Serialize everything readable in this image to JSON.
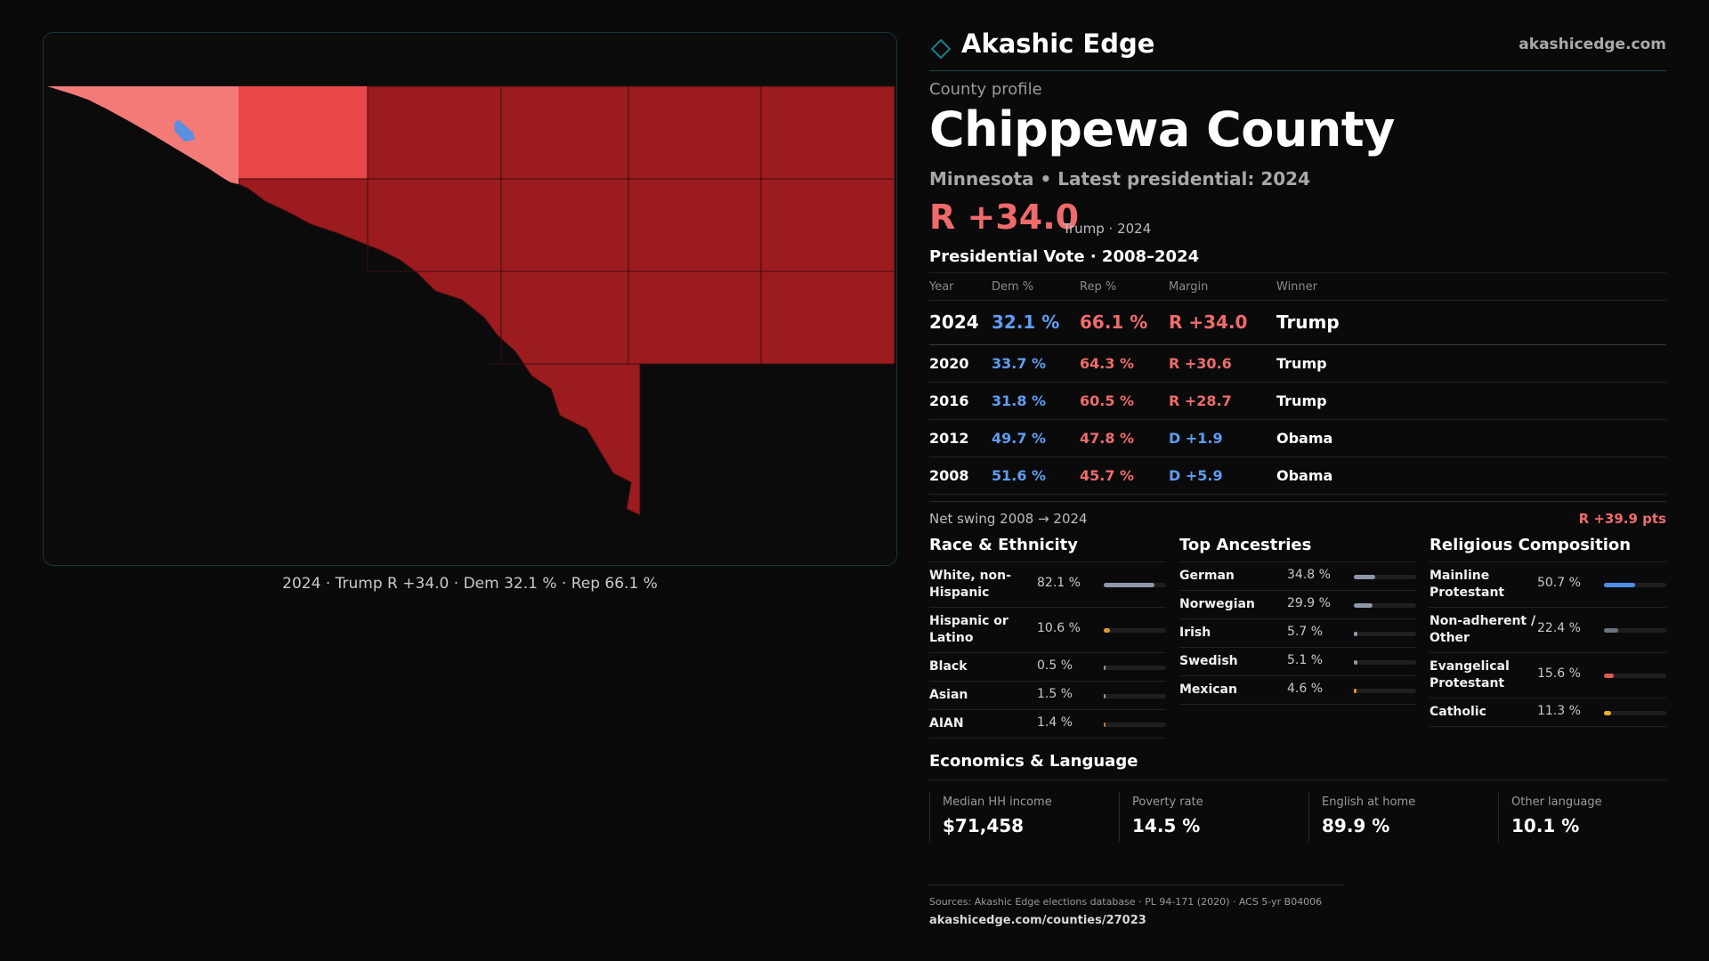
{
  "map": {
    "caption": "2024 · Trump R +34.0 · Dem 32.1 % · Rep 66.1 %",
    "colors": {
      "light_red": "#f47a78",
      "mid_red": "#e8474a",
      "dark_red": "#9b1b1f",
      "blue_enclave": "#5b8fe0",
      "background": "#0b0b0c"
    }
  },
  "brand": {
    "name": "Akashic Edge",
    "url": "akashicedge.com",
    "accent": "#1b7d86"
  },
  "profile": {
    "eyebrow": "County profile",
    "title": "Chippewa County",
    "subtitle": "Minnesota • Latest presidential: 2024",
    "headline_margin": "R +34.0",
    "headline_note": "Trump · 2024"
  },
  "vote": {
    "title": "Presidential Vote · 2008–2024",
    "headers": {
      "year": "Year",
      "dem": "Dem %",
      "rep": "Rep %",
      "margin": "Margin",
      "winner": "Winner"
    },
    "rows": [
      {
        "year": "2024",
        "dem": "32.1 %",
        "rep": "66.1 %",
        "margin": "R +34.0",
        "party": "r",
        "winner": "Trump"
      },
      {
        "year": "2020",
        "dem": "33.7 %",
        "rep": "64.3 %",
        "margin": "R +30.6",
        "party": "r",
        "winner": "Trump"
      },
      {
        "year": "2016",
        "dem": "31.8 %",
        "rep": "60.5 %",
        "margin": "R +28.7",
        "party": "r",
        "winner": "Trump"
      },
      {
        "year": "2012",
        "dem": "49.7 %",
        "rep": "47.8 %",
        "margin": "D +1.9",
        "party": "d",
        "winner": "Obama"
      },
      {
        "year": "2008",
        "dem": "51.6 %",
        "rep": "45.7 %",
        "margin": "D +5.9",
        "party": "d",
        "winner": "Obama"
      }
    ],
    "swing_label": "Net swing 2008 → 2024",
    "swing_value": "R +39.9 pts"
  },
  "race": {
    "title": "Race & Ethnicity",
    "items": [
      {
        "label": "White, non-\nHispanic",
        "pct": "82.1 %",
        "value": 82.1,
        "color": "#8d98a8"
      },
      {
        "label": "Hispanic or\nLatino",
        "pct": "10.6 %",
        "value": 10.6,
        "color": "#e0962e"
      },
      {
        "label": "Black",
        "pct": "0.5 %",
        "value": 0.5,
        "color": "#8d98a8"
      },
      {
        "label": "Asian",
        "pct": "1.5 %",
        "value": 1.5,
        "color": "#8d98a8"
      },
      {
        "label": "AIAN",
        "pct": "1.4 %",
        "value": 1.4,
        "color": "#c07a3a"
      }
    ]
  },
  "ancestry": {
    "title": "Top Ancestries",
    "items": [
      {
        "label": "German",
        "pct": "34.8 %",
        "value": 34.8,
        "color": "#8d98a8"
      },
      {
        "label": "Norwegian",
        "pct": "29.9 %",
        "value": 29.9,
        "color": "#8d98a8"
      },
      {
        "label": "Irish",
        "pct": "5.7 %",
        "value": 5.7,
        "color": "#8d98a8"
      },
      {
        "label": "Swedish",
        "pct": "5.1 %",
        "value": 5.1,
        "color": "#8d98a8"
      },
      {
        "label": "Mexican",
        "pct": "4.6 %",
        "value": 4.6,
        "color": "#e0962e"
      }
    ]
  },
  "religion": {
    "title": "Religious Composition",
    "items": [
      {
        "label": "Mainline\nProtestant",
        "pct": "50.7 %",
        "value": 50.7,
        "color": "#4f8ee8"
      },
      {
        "label": "Non-adherent /\nOther",
        "pct": "22.4 %",
        "value": 22.4,
        "color": "#6c7480"
      },
      {
        "label": "Evangelical\nProtestant",
        "pct": "15.6 %",
        "value": 15.6,
        "color": "#e05a5a"
      },
      {
        "label": "Catholic",
        "pct": "11.3 %",
        "value": 11.3,
        "color": "#e0b22e"
      }
    ]
  },
  "economics": {
    "title": "Economics & Language",
    "cells": [
      {
        "label": "Median HH income",
        "value": "$71,458"
      },
      {
        "label": "Poverty rate",
        "value": "14.5 %"
      },
      {
        "label": "English at home",
        "value": "89.9 %"
      },
      {
        "label": "Other language",
        "value": "10.1 %"
      }
    ]
  },
  "footer": {
    "sources": "Sources: Akashic Edge elections database · PL 94-171 (2020) · ACS 5-yr B04006",
    "url": "akashicedge.com/counties/27023"
  }
}
